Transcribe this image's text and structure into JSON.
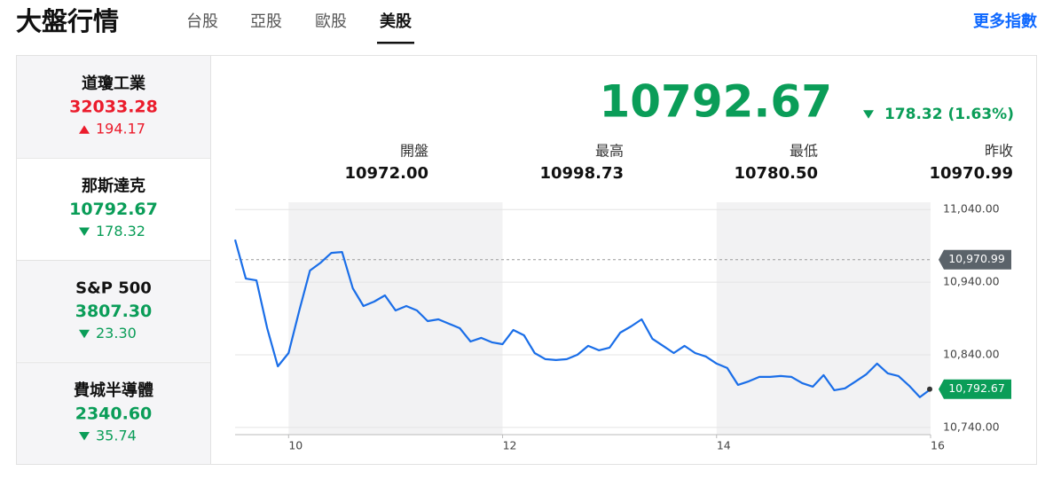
{
  "header": {
    "title": "大盤行情",
    "tabs": [
      "台股",
      "亞股",
      "歐股",
      "美股"
    ],
    "selected_tab": 3,
    "more_link": "更多指數"
  },
  "indices": [
    {
      "name": "道瓊工業",
      "value": "32033.28",
      "change": "194.17",
      "direction": "up"
    },
    {
      "name": "那斯達克",
      "value": "10792.67",
      "change": "178.32",
      "direction": "down"
    },
    {
      "name": "S&P 500",
      "value": "3807.30",
      "change": "23.30",
      "direction": "down"
    },
    {
      "name": "費城半導體",
      "value": "2340.60",
      "change": "35.74",
      "direction": "down"
    }
  ],
  "selected_index": 1,
  "quote": {
    "price": "10792.67",
    "change": "178.32 (1.63%)",
    "direction": "down",
    "stats": [
      {
        "label": "開盤",
        "value": "10972.00"
      },
      {
        "label": "最高",
        "value": "10998.73"
      },
      {
        "label": "最低",
        "value": "10780.50"
      },
      {
        "label": "昨收",
        "value": "10970.99"
      }
    ]
  },
  "chart_data": {
    "type": "line",
    "color": "#1a6ee8",
    "x": [
      9.5,
      9.6,
      9.7,
      9.8,
      9.9,
      10.0,
      10.1,
      10.2,
      10.3,
      10.4,
      10.5,
      10.6,
      10.7,
      10.8,
      10.9,
      11.0,
      11.1,
      11.2,
      11.3,
      11.4,
      11.5,
      11.6,
      11.7,
      11.8,
      11.9,
      12.0,
      12.1,
      12.2,
      12.3,
      12.4,
      12.5,
      12.6,
      12.7,
      12.8,
      12.9,
      13.0,
      13.1,
      13.2,
      13.3,
      13.4,
      13.5,
      13.6,
      13.7,
      13.8,
      13.9,
      14.0,
      14.1,
      14.2,
      14.3,
      14.4,
      14.5,
      14.6,
      14.7,
      14.8,
      14.9,
      15.0,
      15.1,
      15.2,
      15.3,
      15.4,
      15.5,
      15.6,
      15.7,
      15.8,
      15.9,
      16.0
    ],
    "values": [
      10998.5,
      10944.9,
      10942.4,
      10876.6,
      10824.1,
      10842.4,
      10901.0,
      10955.9,
      10966.8,
      10980.2,
      10981.5,
      10931.5,
      10907.1,
      10913.2,
      10921.7,
      10901.0,
      10907.1,
      10901.0,
      10886.3,
      10888.8,
      10882.7,
      10876.6,
      10858.3,
      10863.2,
      10857.1,
      10854.6,
      10874.1,
      10866.8,
      10842.4,
      10833.9,
      10832.7,
      10833.9,
      10840.0,
      10852.2,
      10846.1,
      10849.8,
      10870.5,
      10879.0,
      10888.8,
      10862.0,
      10852.2,
      10842.4,
      10852.2,
      10842.4,
      10837.6,
      10827.8,
      10821.7,
      10798.5,
      10803.4,
      10809.5,
      10809.5,
      10810.7,
      10809.5,
      10801.0,
      10796.1,
      10811.9,
      10791.2,
      10793.7,
      10803.4,
      10813.2,
      10827.8,
      10814.4,
      10810.7,
      10797.3,
      10781.5,
      10792.67
    ],
    "xlim": [
      9.5,
      16
    ],
    "xticks": [
      10,
      12,
      14,
      16
    ],
    "ylim": [
      10730,
      11050
    ],
    "yticks": [
      {
        "value": 11040,
        "label": "11,040.00"
      },
      {
        "value": 10940,
        "label": "10,940.00"
      },
      {
        "value": 10840,
        "label": "10,840.00"
      },
      {
        "value": 10740,
        "label": "10,740.00"
      }
    ],
    "grid": true,
    "reference": {
      "value": 10970.99,
      "label": "10,970.99"
    },
    "last_label": {
      "value": 10792.67,
      "label": "10,792.67"
    }
  }
}
